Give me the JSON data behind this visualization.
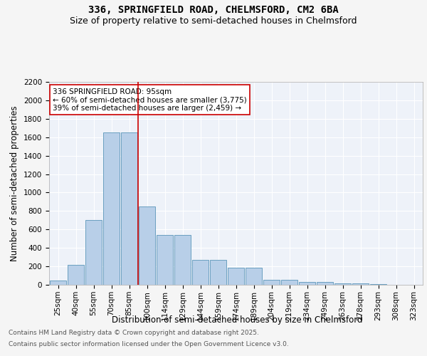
{
  "title_line1": "336, SPRINGFIELD ROAD, CHELMSFORD, CM2 6BA",
  "title_line2": "Size of property relative to semi-detached houses in Chelmsford",
  "xlabel": "Distribution of semi-detached houses by size in Chelmsford",
  "ylabel": "Number of semi-detached properties",
  "categories": [
    "25sqm",
    "40sqm",
    "55sqm",
    "70sqm",
    "85sqm",
    "100sqm",
    "114sqm",
    "129sqm",
    "144sqm",
    "159sqm",
    "174sqm",
    "189sqm",
    "204sqm",
    "219sqm",
    "234sqm",
    "249sqm",
    "263sqm",
    "278sqm",
    "293sqm",
    "308sqm",
    "323sqm"
  ],
  "values": [
    50,
    220,
    700,
    1650,
    1650,
    850,
    540,
    540,
    270,
    270,
    185,
    185,
    55,
    55,
    30,
    30,
    15,
    15,
    5,
    2,
    0
  ],
  "bar_color": "#b8cfe8",
  "bar_edge_color": "#6a9fc0",
  "vline_color": "#cc0000",
  "annotation_text": "336 SPRINGFIELD ROAD: 95sqm\n← 60% of semi-detached houses are smaller (3,775)\n39% of semi-detached houses are larger (2,459) →",
  "annotation_box_color": "#ffffff",
  "annotation_box_edge": "#cc0000",
  "ylim": [
    0,
    2200
  ],
  "yticks": [
    0,
    200,
    400,
    600,
    800,
    1000,
    1200,
    1400,
    1600,
    1800,
    2000,
    2200
  ],
  "background_color": "#eef2f9",
  "grid_color": "#ffffff",
  "footer_line1": "Contains HM Land Registry data © Crown copyright and database right 2025.",
  "footer_line2": "Contains public sector information licensed under the Open Government Licence v3.0.",
  "title_fontsize": 10,
  "subtitle_fontsize": 9,
  "axis_label_fontsize": 8.5,
  "tick_fontsize": 7.5,
  "annotation_fontsize": 7.5,
  "footer_fontsize": 6.5
}
